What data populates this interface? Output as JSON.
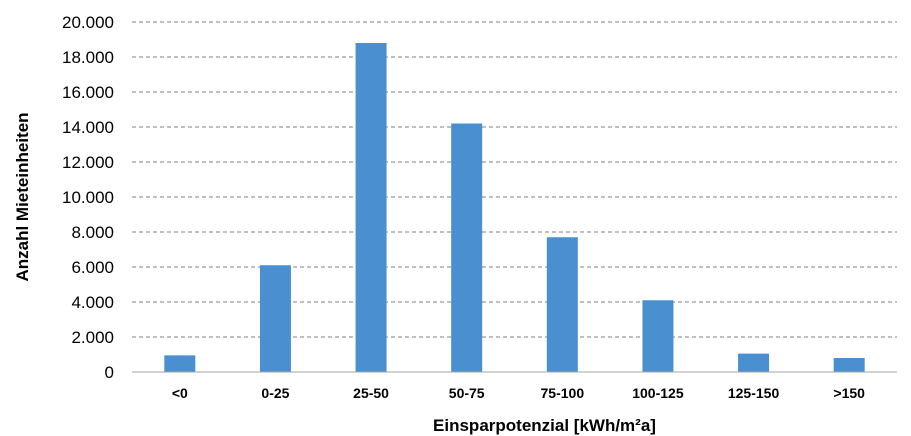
{
  "chart_data": {
    "type": "bar",
    "title": "",
    "xlabel": "Einsparpotenzial [kWh/m²a]",
    "ylabel": "Anzahl Mieteinheiten",
    "categories": [
      "<0",
      "0-25",
      "25-50",
      "50-75",
      "75-100",
      "100-125",
      "125-150",
      ">150"
    ],
    "values": [
      950,
      6100,
      18800,
      14200,
      7700,
      4100,
      1050,
      800
    ],
    "ylim": [
      0,
      20000
    ],
    "y_ticks": [
      "0",
      "2.000",
      "4.000",
      "6.000",
      "8.000",
      "10.000",
      "12.000",
      "14.000",
      "16.000",
      "18.000",
      "20.000"
    ],
    "grid": true,
    "legend": "none",
    "bar_color": "#4a8fd0"
  }
}
